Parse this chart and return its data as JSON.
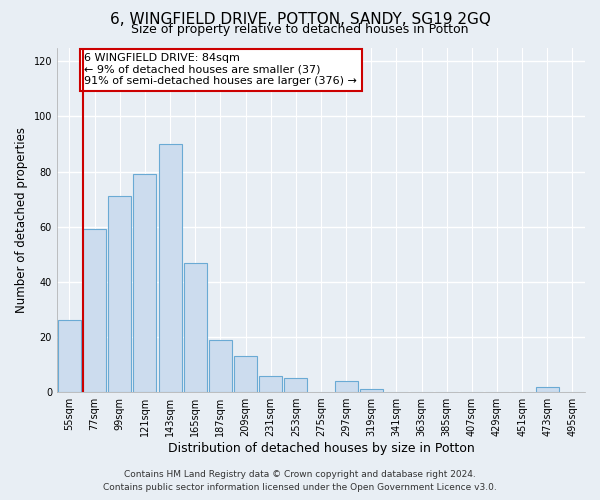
{
  "title": "6, WINGFIELD DRIVE, POTTON, SANDY, SG19 2GQ",
  "subtitle": "Size of property relative to detached houses in Potton",
  "xlabel": "Distribution of detached houses by size in Potton",
  "ylabel": "Number of detached properties",
  "bar_labels": [
    "55sqm",
    "77sqm",
    "99sqm",
    "121sqm",
    "143sqm",
    "165sqm",
    "187sqm",
    "209sqm",
    "231sqm",
    "253sqm",
    "275sqm",
    "297sqm",
    "319sqm",
    "341sqm",
    "363sqm",
    "385sqm",
    "407sqm",
    "429sqm",
    "451sqm",
    "473sqm",
    "495sqm"
  ],
  "bar_values": [
    26,
    59,
    71,
    79,
    90,
    47,
    19,
    13,
    6,
    5,
    0,
    4,
    1,
    0,
    0,
    0,
    0,
    0,
    0,
    2,
    0
  ],
  "bar_color": "#ccdcee",
  "bar_edge_color": "#6aaad4",
  "vline_x_index": 1,
  "vline_color": "#cc0000",
  "ylim": [
    0,
    125
  ],
  "yticks": [
    0,
    20,
    40,
    60,
    80,
    100,
    120
  ],
  "annotation_line1": "6 WINGFIELD DRIVE: 84sqm",
  "annotation_line2": "← 9% of detached houses are smaller (37)",
  "annotation_line3": "91% of semi-detached houses are larger (376) →",
  "annotation_box_color": "#ffffff",
  "annotation_box_edge": "#cc0000",
  "footer_line1": "Contains HM Land Registry data © Crown copyright and database right 2024.",
  "footer_line2": "Contains public sector information licensed under the Open Government Licence v3.0.",
  "background_color": "#e8eef4",
  "grid_color": "#ffffff",
  "title_fontsize": 11,
  "subtitle_fontsize": 9,
  "xlabel_fontsize": 9,
  "ylabel_fontsize": 8.5,
  "tick_fontsize": 7,
  "ann_fontsize": 8,
  "footer_fontsize": 6.5
}
